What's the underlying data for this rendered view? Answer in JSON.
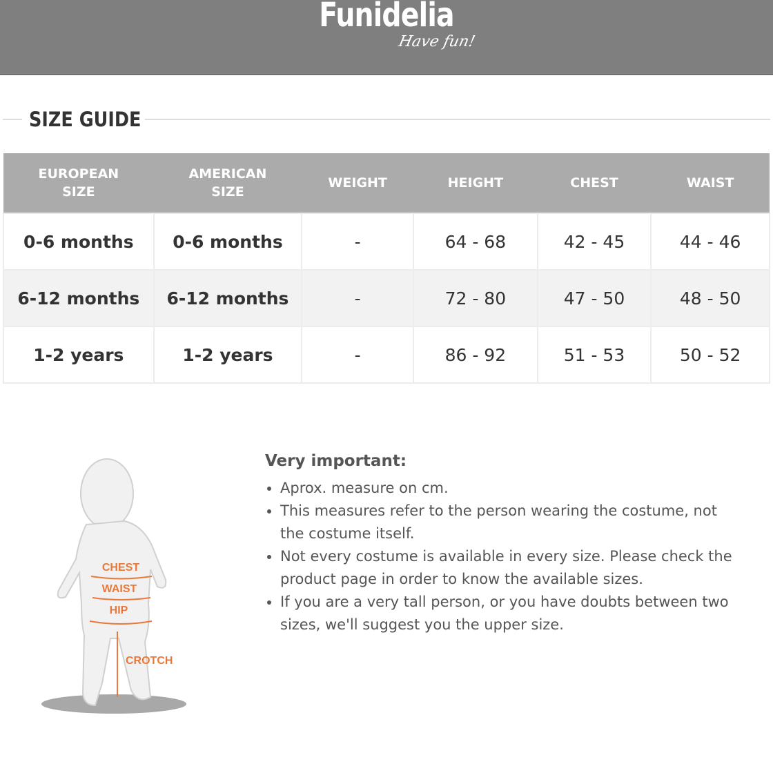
{
  "header": {
    "logo": "Funidelia",
    "tagline": "Have fun!",
    "background": "#7f7f7f"
  },
  "title": "SIZE GUIDE",
  "table": {
    "headers": [
      [
        "EUROPEAN",
        "SIZE"
      ],
      [
        "AMERICAN",
        "SIZE"
      ],
      [
        "WEIGHT",
        ""
      ],
      [
        "HEIGHT",
        ""
      ],
      [
        "CHEST",
        ""
      ],
      [
        "WAIST",
        ""
      ]
    ],
    "rows": [
      [
        "0-6 months",
        "0-6 months",
        "-",
        "64 - 68",
        "42 - 45",
        "44 - 46"
      ],
      [
        "6-12 months",
        "6-12 months",
        "-",
        "72 - 80",
        "47 - 50",
        "48 - 50"
      ],
      [
        "1-2 years",
        "1-2 years",
        "-",
        "86 - 92",
        "51 - 53",
        "50 - 52"
      ]
    ]
  },
  "figure": {
    "labels": {
      "chest": "CHEST",
      "waist": "WAIST",
      "hip": "HIP",
      "crotch": "CROTCH"
    },
    "accent": "#e8793a"
  },
  "important": {
    "title": "Very important:",
    "items": [
      "Aprox. measure on cm.",
      "This measures refer to the person wearing the costume, not the costume itself.",
      "Not every costume is available in every size. Please check the product page in order to know the available sizes.",
      "If you are a very tall person, or you have doubts between two sizes, we'll suggest you the upper size."
    ]
  }
}
